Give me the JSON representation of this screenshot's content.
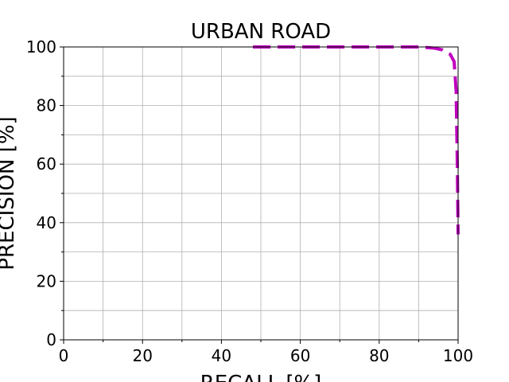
{
  "chart_data": {
    "type": "line",
    "title": "URBAN ROAD",
    "x_label": "RECALL [%]",
    "y_label": "PRECISION [%]",
    "x": [
      48,
      60,
      70,
      80,
      90,
      94,
      96,
      98,
      99,
      99.5,
      99.8,
      100
    ],
    "series": [
      {
        "color": "#bf00bf",
        "dashed": true,
        "values": [
          100,
          100,
          100,
          100,
          100,
          99.6,
          99,
          97.5,
          95,
          85,
          60,
          36
        ]
      }
    ],
    "xlim": [
      0,
      100
    ],
    "ylim": [
      0,
      100
    ],
    "xticks": [
      0,
      20,
      40,
      60,
      80,
      100
    ],
    "yticks": [
      0,
      20,
      40,
      60,
      80,
      100
    ],
    "minor_xticks": [
      10,
      30,
      50,
      70,
      90
    ],
    "minor_yticks": [
      10,
      30,
      50,
      70,
      90
    ],
    "grid": true
  }
}
